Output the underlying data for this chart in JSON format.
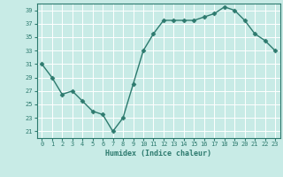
{
  "x": [
    0,
    1,
    2,
    3,
    4,
    5,
    6,
    7,
    8,
    9,
    10,
    11,
    12,
    13,
    14,
    15,
    16,
    17,
    18,
    19,
    20,
    21,
    22,
    23
  ],
  "y": [
    31,
    29,
    26.5,
    27,
    25.5,
    24,
    23.5,
    21,
    23,
    28,
    33,
    35.5,
    37.5,
    37.5,
    37.5,
    37.5,
    38,
    38.5,
    39.5,
    39,
    37.5,
    35.5,
    34.5,
    33
  ],
  "line_color": "#2d7a6e",
  "marker": "D",
  "marker_size": 2.5,
  "bg_color": "#c8ebe6",
  "grid_color": "#ffffff",
  "xlabel": "Humidex (Indice chaleur)",
  "ylim": [
    20,
    40
  ],
  "xlim": [
    -0.5,
    23.5
  ],
  "yticks": [
    21,
    23,
    25,
    27,
    29,
    31,
    33,
    35,
    37,
    39
  ],
  "xticks": [
    0,
    1,
    2,
    3,
    4,
    5,
    6,
    7,
    8,
    9,
    10,
    11,
    12,
    13,
    14,
    15,
    16,
    17,
    18,
    19,
    20,
    21,
    22,
    23
  ],
  "tick_color": "#2d7a6e",
  "label_color": "#2d7a6e",
  "xlabel_fontsize": 6.0,
  "tick_fontsize": 5.0,
  "linewidth": 1.0
}
